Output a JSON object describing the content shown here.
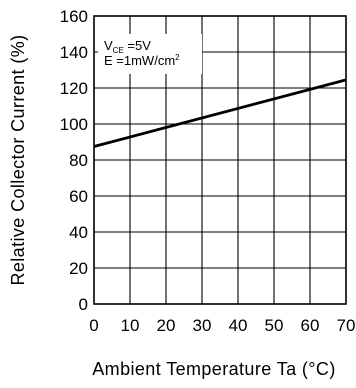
{
  "chart_data": {
    "type": "line",
    "title": "",
    "xlabel": "Ambient Temperature Ta (°C)",
    "ylabel": "Relative Collector Current (%)",
    "xlim": [
      0,
      70
    ],
    "ylim": [
      0,
      160
    ],
    "x_ticks": [
      0,
      10,
      20,
      30,
      40,
      50,
      60,
      70
    ],
    "y_ticks": [
      0,
      20,
      40,
      60,
      80,
      100,
      120,
      140,
      160
    ],
    "grid": true,
    "legend": "none",
    "annotations": [
      {
        "main": "V",
        "sub": "CE",
        "rest": " =5V"
      },
      {
        "main": "E =1mW/cm",
        "sup": "2"
      }
    ],
    "series": [
      {
        "x": [
          0,
          70
        ],
        "y": [
          87.5,
          124.5
        ],
        "color": "#000000"
      }
    ]
  }
}
